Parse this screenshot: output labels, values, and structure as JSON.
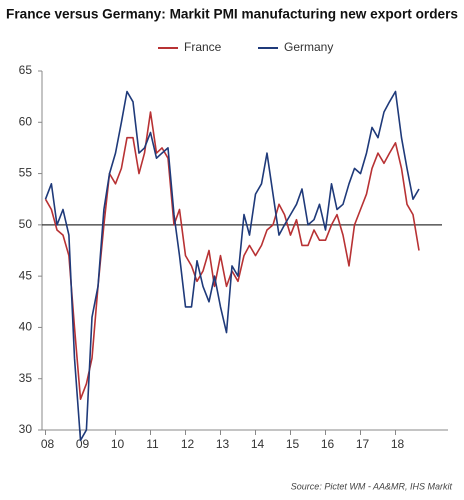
{
  "chart_data": {
    "type": "line",
    "title": "France versus Germany: Markit PMI manufacturing new export orders",
    "source": "Source: Pictet WM - AA&MR, IHS Markit",
    "x": [
      2008.0,
      2008.17,
      2008.33,
      2008.5,
      2008.67,
      2008.83,
      2009.0,
      2009.17,
      2009.33,
      2009.5,
      2009.67,
      2009.83,
      2010.0,
      2010.17,
      2010.33,
      2010.5,
      2010.67,
      2010.83,
      2011.0,
      2011.17,
      2011.33,
      2011.5,
      2011.67,
      2011.83,
      2012.0,
      2012.17,
      2012.33,
      2012.5,
      2012.67,
      2012.83,
      2013.0,
      2013.17,
      2013.33,
      2013.5,
      2013.67,
      2013.83,
      2014.0,
      2014.17,
      2014.33,
      2014.5,
      2014.67,
      2014.83,
      2015.0,
      2015.17,
      2015.33,
      2015.5,
      2015.67,
      2015.83,
      2016.0,
      2016.17,
      2016.33,
      2016.5,
      2016.67,
      2016.83,
      2017.0,
      2017.17,
      2017.33,
      2017.5,
      2017.67,
      2017.83,
      2018.0,
      2018.17,
      2018.33,
      2018.5,
      2018.67
    ],
    "series": [
      {
        "name": "France",
        "color": "#b83234",
        "values": [
          52.5,
          51.5,
          49.5,
          49,
          47,
          40,
          33,
          34.5,
          37,
          44,
          50,
          55,
          54,
          55.5,
          58.5,
          58.5,
          55,
          57,
          61,
          57,
          57.5,
          56.5,
          50,
          51.5,
          47,
          46,
          44.5,
          45.5,
          47.5,
          44,
          47,
          44,
          45.5,
          44.5,
          47,
          48,
          47,
          48,
          49.5,
          50,
          52,
          51,
          49,
          50.5,
          48,
          48,
          49.5,
          48.5,
          48.5,
          50,
          51,
          49,
          46,
          50,
          51.5,
          53,
          55.5,
          57,
          56,
          57,
          58,
          55.5,
          52,
          51,
          47.5
        ]
      },
      {
        "name": "Germany",
        "color": "#1f3a7a",
        "values": [
          52.5,
          54,
          50,
          51.5,
          49,
          37,
          29,
          30,
          41,
          44,
          51.5,
          55,
          57,
          60,
          63,
          62,
          57,
          57.5,
          59,
          56.5,
          57,
          57.5,
          51,
          47,
          42,
          42,
          46.5,
          44,
          42.5,
          45,
          42,
          39.5,
          46,
          45,
          51,
          49,
          53,
          54,
          57,
          53,
          49,
          50,
          51,
          52,
          53.5,
          50,
          50.5,
          52,
          49.5,
          54,
          51.5,
          52,
          54,
          55.5,
          55,
          57,
          59.5,
          58.5,
          61,
          62,
          63,
          58.5,
          55.5,
          52.5,
          53.5
        ]
      }
    ],
    "reference_line": 50,
    "xlim": [
      2007.9,
      2019.5
    ],
    "ylim": [
      30,
      65
    ],
    "xticks": [
      {
        "value": 2008,
        "label": "08"
      },
      {
        "value": 2009,
        "label": "09"
      },
      {
        "value": 2010,
        "label": "10"
      },
      {
        "value": 2011,
        "label": "11"
      },
      {
        "value": 2012,
        "label": "12"
      },
      {
        "value": 2013,
        "label": "13"
      },
      {
        "value": 2014,
        "label": "14"
      },
      {
        "value": 2015,
        "label": "15"
      },
      {
        "value": 2016,
        "label": "16"
      },
      {
        "value": 2017,
        "label": "17"
      },
      {
        "value": 2018,
        "label": "18"
      }
    ],
    "yticks": [
      30,
      35,
      40,
      45,
      50,
      55,
      60,
      65
    ]
  }
}
